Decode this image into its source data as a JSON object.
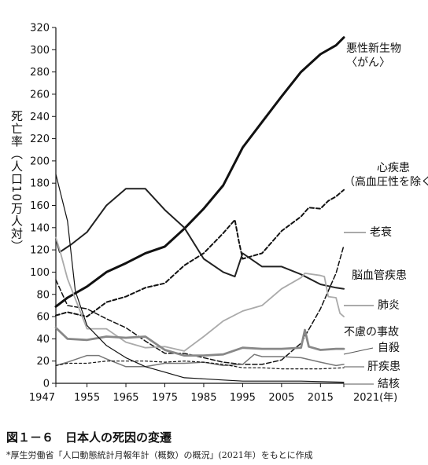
{
  "figure": {
    "caption": "図１－６　日本人の死因の変遷",
    "source": "*厚生労働省「人口動態統計月報年計（概数）の概況」(2021年）をもとに作成"
  },
  "chart_data": {
    "type": "line",
    "title": "",
    "ylabel": "死亡率（人口10万人対）",
    "xlabel": "",
    "ylim": [
      0,
      320
    ],
    "xlim": [
      1947,
      2021
    ],
    "y_ticks": [
      "0",
      "20",
      "40",
      "60",
      "80",
      "100",
      "120",
      "140",
      "160",
      "180",
      "200",
      "220",
      "240",
      "260",
      "280",
      "300",
      "320"
    ],
    "x_ticks": [
      {
        "x": 1947,
        "label": "1947"
      },
      {
        "x": 1955,
        "label": "1955"
      },
      {
        "x": 1965,
        "label": "1965"
      },
      {
        "x": 1975,
        "label": "1975"
      },
      {
        "x": 1985,
        "label": "1985"
      },
      {
        "x": 1995,
        "label": "1995"
      },
      {
        "x": 2005,
        "label": "2005"
      },
      {
        "x": 2015,
        "label": "2015"
      },
      {
        "x": 2021,
        "label": "2021(年)"
      }
    ],
    "series": [
      {
        "name": "悪性新生物\n〈がん〉",
        "color": "#111111",
        "width": 3,
        "dash": "",
        "points": [
          [
            1947,
            69
          ],
          [
            1950,
            77
          ],
          [
            1955,
            87
          ],
          [
            1960,
            100
          ],
          [
            1965,
            108
          ],
          [
            1970,
            117
          ],
          [
            1975,
            123
          ],
          [
            1980,
            139
          ],
          [
            1985,
            157
          ],
          [
            1990,
            178
          ],
          [
            1995,
            212
          ],
          [
            2000,
            235
          ],
          [
            2005,
            258
          ],
          [
            2010,
            280
          ],
          [
            2015,
            296
          ],
          [
            2019,
            304
          ],
          [
            2021,
            311
          ]
        ]
      },
      {
        "name": "心疾患\n（高血圧性を除く）",
        "color": "#111111",
        "width": 2,
        "dash": "5,3",
        "points": [
          [
            1947,
            61
          ],
          [
            1950,
            64
          ],
          [
            1955,
            60
          ],
          [
            1960,
            73
          ],
          [
            1965,
            78
          ],
          [
            1970,
            86
          ],
          [
            1975,
            90
          ],
          [
            1980,
            106
          ],
          [
            1985,
            117
          ],
          [
            1990,
            135
          ],
          [
            1993,
            147
          ],
          [
            1994,
            128
          ],
          [
            1995,
            112
          ],
          [
            2000,
            117
          ],
          [
            2005,
            137
          ],
          [
            2010,
            150
          ],
          [
            2012,
            158
          ],
          [
            2015,
            157
          ],
          [
            2017,
            164
          ],
          [
            2019,
            168
          ],
          [
            2021,
            174
          ]
        ]
      },
      {
        "name": "老衰",
        "color": "#111111",
        "width": 1.5,
        "dash": "6,3",
        "points": [
          [
            1947,
            93
          ],
          [
            1950,
            70
          ],
          [
            1955,
            67
          ],
          [
            1960,
            58
          ],
          [
            1965,
            50
          ],
          [
            1970,
            38
          ],
          [
            1975,
            27
          ],
          [
            1980,
            27
          ],
          [
            1985,
            23
          ],
          [
            1990,
            19
          ],
          [
            1995,
            17
          ],
          [
            2000,
            17
          ],
          [
            2005,
            21
          ],
          [
            2010,
            36
          ],
          [
            2015,
            67
          ],
          [
            2019,
            99
          ],
          [
            2021,
            124
          ]
        ]
      },
      {
        "name": "脳血管疾患",
        "color": "#222222",
        "width": 2,
        "dash": "",
        "points": [
          [
            1947,
            130
          ],
          [
            1948,
            118
          ],
          [
            1951,
            125
          ],
          [
            1955,
            136
          ],
          [
            1960,
            160
          ],
          [
            1965,
            175
          ],
          [
            1970,
            175
          ],
          [
            1975,
            156
          ],
          [
            1980,
            140
          ],
          [
            1985,
            112
          ],
          [
            1990,
            100
          ],
          [
            1993,
            96
          ],
          [
            1995,
            117
          ],
          [
            2000,
            105
          ],
          [
            2005,
            105
          ],
          [
            2010,
            98
          ],
          [
            2015,
            89
          ],
          [
            2019,
            86
          ],
          [
            2021,
            85
          ]
        ]
      },
      {
        "name": "肺炎",
        "color": "#aaaaaa",
        "width": 1.8,
        "dash": "",
        "points": [
          [
            1947,
            131
          ],
          [
            1948,
            120
          ],
          [
            1950,
            94
          ],
          [
            1955,
            49
          ],
          [
            1960,
            49
          ],
          [
            1965,
            37
          ],
          [
            1970,
            32
          ],
          [
            1975,
            33
          ],
          [
            1980,
            29
          ],
          [
            1985,
            42
          ],
          [
            1990,
            56
          ],
          [
            1995,
            65
          ],
          [
            2000,
            70
          ],
          [
            2005,
            85
          ],
          [
            2010,
            95
          ],
          [
            2011,
            99
          ],
          [
            2015,
            97
          ],
          [
            2016,
            96
          ],
          [
            2017,
            78
          ],
          [
            2019,
            77
          ],
          [
            2020,
            63
          ],
          [
            2021,
            60
          ]
        ]
      },
      {
        "name": "不慮の事故",
        "color": "#888888",
        "width": 2.8,
        "dash": "",
        "points": [
          [
            1947,
            50
          ],
          [
            1950,
            40
          ],
          [
            1955,
            39
          ],
          [
            1960,
            42
          ],
          [
            1965,
            41
          ],
          [
            1970,
            42
          ],
          [
            1975,
            30
          ],
          [
            1980,
            25
          ],
          [
            1985,
            25
          ],
          [
            1990,
            26
          ],
          [
            1995,
            32
          ],
          [
            2000,
            31
          ],
          [
            2005,
            31
          ],
          [
            2010,
            32
          ],
          [
            2011,
            48
          ],
          [
            2012,
            33
          ],
          [
            2015,
            30
          ],
          [
            2019,
            31
          ],
          [
            2021,
            31
          ]
        ]
      },
      {
        "name": "自殺",
        "color": "#777777",
        "width": 1.5,
        "dash": "",
        "points": [
          [
            1947,
            16
          ],
          [
            1950,
            19
          ],
          [
            1955,
            25
          ],
          [
            1958,
            25
          ],
          [
            1960,
            22
          ],
          [
            1965,
            15
          ],
          [
            1970,
            15
          ],
          [
            1975,
            18
          ],
          [
            1980,
            18
          ],
          [
            1985,
            19
          ],
          [
            1990,
            16
          ],
          [
            1995,
            17
          ],
          [
            1998,
            26
          ],
          [
            2000,
            24
          ],
          [
            2005,
            24
          ],
          [
            2010,
            23
          ],
          [
            2015,
            19
          ],
          [
            2019,
            16
          ],
          [
            2021,
            17
          ]
        ]
      },
      {
        "name": "肝疾患",
        "color": "#111111",
        "width": 1.2,
        "dash": "3,3",
        "points": [
          [
            1947,
            16
          ],
          [
            1950,
            18
          ],
          [
            1955,
            18
          ],
          [
            1960,
            20
          ],
          [
            1965,
            20
          ],
          [
            1970,
            20
          ],
          [
            1975,
            19
          ],
          [
            1980,
            20
          ],
          [
            1985,
            19
          ],
          [
            1990,
            17
          ],
          [
            1995,
            14
          ],
          [
            2000,
            14
          ],
          [
            2005,
            13
          ],
          [
            2010,
            13
          ],
          [
            2015,
            13
          ],
          [
            2021,
            14
          ]
        ]
      },
      {
        "name": "結核",
        "color": "#111111",
        "width": 1.2,
        "dash": "",
        "points": [
          [
            1947,
            188
          ],
          [
            1950,
            146
          ],
          [
            1952,
            83
          ],
          [
            1955,
            52
          ],
          [
            1960,
            34
          ],
          [
            1965,
            23
          ],
          [
            1970,
            15
          ],
          [
            1975,
            10
          ],
          [
            1980,
            5
          ],
          [
            1985,
            4
          ],
          [
            1990,
            3
          ],
          [
            1995,
            2
          ],
          [
            2000,
            2
          ],
          [
            2010,
            2
          ],
          [
            2021,
            1
          ]
        ]
      }
    ],
    "labels": [
      {
        "series": "悪性新生物\n〈がん〉",
        "lines": [
          "悪性新生物",
          "〈がん〉"
        ]
      },
      {
        "series": "心疾患\n（高血圧性を除く）",
        "lines": [
          "心疾患",
          "（高血圧性を除く）"
        ]
      },
      {
        "series": "老衰",
        "lines": [
          "老衰"
        ]
      },
      {
        "series": "脳血管疾患",
        "lines": [
          "脳血管疾患"
        ]
      },
      {
        "series": "肺炎",
        "lines": [
          "肺炎"
        ]
      },
      {
        "series": "不慮の事故",
        "lines": [
          "不慮の事故"
        ]
      },
      {
        "series": "自殺",
        "lines": [
          "自殺"
        ]
      },
      {
        "series": "肝疾患",
        "lines": [
          "肝疾患"
        ]
      },
      {
        "series": "結核",
        "lines": [
          "結核"
        ]
      }
    ]
  }
}
